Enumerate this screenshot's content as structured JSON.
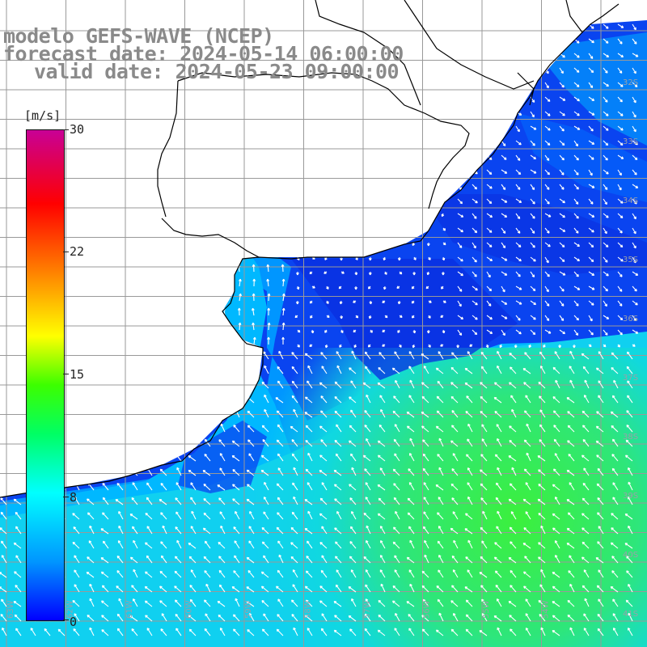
{
  "title": {
    "model": "modelo GEFS-WAVE (NCEP)",
    "forecast": "forecast date: 2024-05-14 06:00:00",
    "valid": "valid date: 2024-05-23 09:00:00"
  },
  "colorbar": {
    "unit": "[m/s]",
    "ticks": [
      "30",
      "22",
      "15",
      "8",
      "0"
    ]
  },
  "map": {
    "variable": "wind speed with wind direction arrows",
    "lat_labels": [
      "32S",
      "33S",
      "34S",
      "35S",
      "36S",
      "37S",
      "38S",
      "39S",
      "40S",
      "41S"
    ],
    "lon_labels": [
      "63W",
      "62W",
      "61W",
      "60W",
      "59W",
      "58W",
      "57W",
      "56W",
      "55W",
      "54W"
    ],
    "colors": {
      "calm": "#0a3cf0",
      "moderate": "#00c8ff",
      "strong": "#28e650",
      "land": "#ffffff",
      "grid": "#999999",
      "coast": "#000000",
      "arrows": "#ffffff"
    }
  }
}
